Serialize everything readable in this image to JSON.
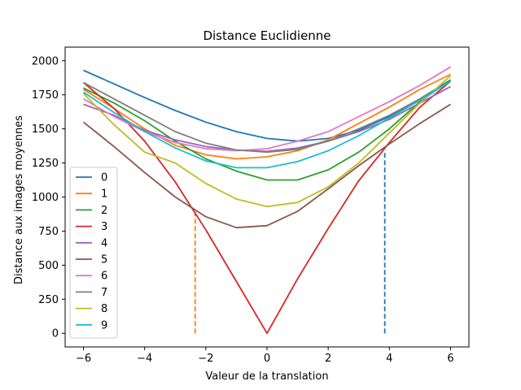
{
  "chart_data": {
    "type": "line",
    "title": "Distance Euclidienne",
    "xlabel": "Valeur de la translation",
    "ylabel": "Distance aux images moyennes",
    "xlim": [
      -6.6,
      6.6
    ],
    "ylim": [
      -100,
      2100
    ],
    "xticks": [
      -6,
      -4,
      -2,
      0,
      2,
      4,
      6
    ],
    "xtick_labels": [
      "−6",
      "−4",
      "−2",
      "0",
      "2",
      "4",
      "6"
    ],
    "yticks": [
      0,
      250,
      500,
      750,
      1000,
      1250,
      1500,
      1750,
      2000
    ],
    "ytick_labels": [
      "0",
      "250",
      "500",
      "750",
      "1000",
      "1250",
      "1500",
      "1750",
      "2000"
    ],
    "grid": false,
    "legend_position": "lower-left",
    "x": [
      -6,
      -5,
      -4,
      -3,
      -2,
      -1,
      0,
      1,
      2,
      3,
      4,
      5,
      6
    ],
    "series": [
      {
        "name": "0",
        "color": "#1f77b4",
        "values": [
          1930,
          1830,
          1730,
          1635,
          1550,
          1480,
          1430,
          1410,
          1430,
          1490,
          1590,
          1720,
          1860
        ]
      },
      {
        "name": "1",
        "color": "#ff7f0e",
        "values": [
          1790,
          1650,
          1500,
          1380,
          1310,
          1280,
          1295,
          1340,
          1420,
          1540,
          1660,
          1790,
          1900
        ]
      },
      {
        "name": "2",
        "color": "#2ca02c",
        "values": [
          1800,
          1690,
          1560,
          1410,
          1280,
          1190,
          1125,
          1125,
          1200,
          1330,
          1500,
          1700,
          1860
        ]
      },
      {
        "name": "3",
        "color": "#d62728",
        "values": [
          1840,
          1650,
          1410,
          1110,
          760,
          380,
          0,
          400,
          770,
          1120,
          1400,
          1660,
          1850
        ]
      },
      {
        "name": "4",
        "color": "#9467bd",
        "values": [
          1680,
          1600,
          1490,
          1420,
          1370,
          1345,
          1335,
          1360,
          1410,
          1480,
          1570,
          1690,
          1810
        ]
      },
      {
        "name": "5",
        "color": "#8c564b",
        "values": [
          1550,
          1370,
          1180,
          1000,
          855,
          775,
          790,
          895,
          1060,
          1230,
          1390,
          1540,
          1680
        ]
      },
      {
        "name": "6",
        "color": "#e377c2",
        "values": [
          1720,
          1590,
          1480,
          1400,
          1355,
          1340,
          1355,
          1410,
          1480,
          1590,
          1700,
          1820,
          1955
        ]
      },
      {
        "name": "7",
        "color": "#7f7f7f",
        "values": [
          1840,
          1720,
          1600,
          1480,
          1395,
          1345,
          1330,
          1350,
          1410,
          1500,
          1600,
          1720,
          1850
        ]
      },
      {
        "name": "8",
        "color": "#bcbd22",
        "values": [
          1760,
          1530,
          1330,
          1250,
          1100,
          985,
          930,
          960,
          1075,
          1250,
          1470,
          1690,
          1890
        ]
      },
      {
        "name": "9",
        "color": "#17becf",
        "values": [
          1770,
          1620,
          1480,
          1360,
          1265,
          1215,
          1215,
          1260,
          1340,
          1450,
          1580,
          1710,
          1850
        ]
      }
    ],
    "vertical_markers": [
      {
        "x": -2.35,
        "y_top": 900,
        "color": "#ff7f0e",
        "style": "dashed"
      },
      {
        "x": 3.85,
        "y_top": 1330,
        "color": "#1f77b4",
        "style": "dashed"
      }
    ]
  }
}
